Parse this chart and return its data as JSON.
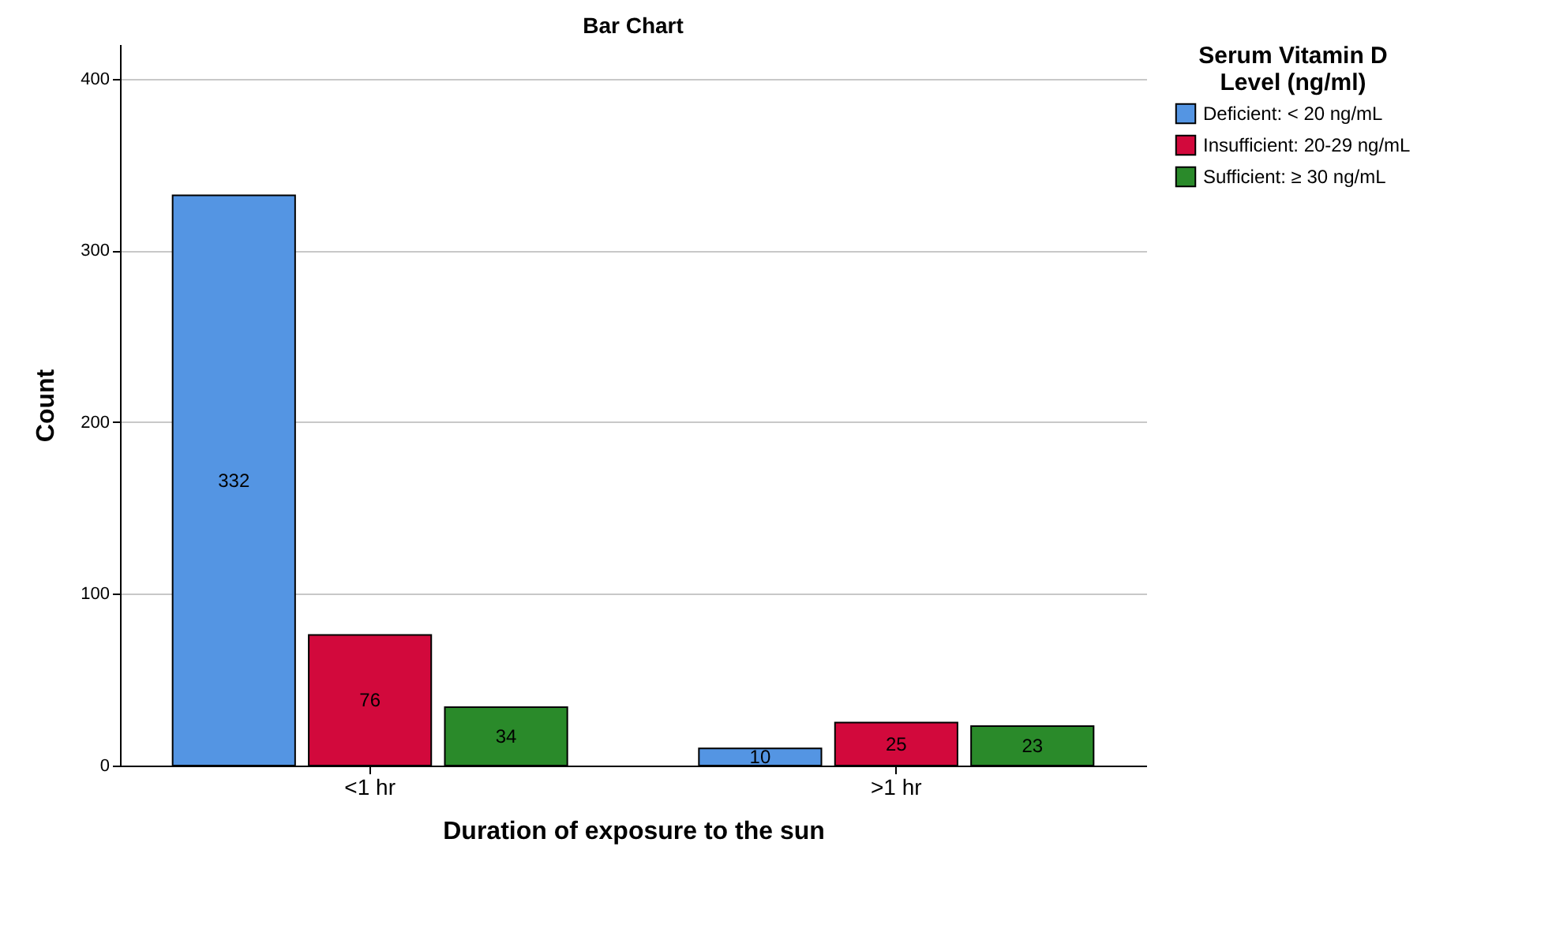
{
  "chart_data": {
    "type": "bar",
    "title": "Bar Chart",
    "xlabel": "Duration of exposure to the sun",
    "ylabel": "Count",
    "legend_title": "Serum Vitamin D Level (ng/ml)",
    "categories": [
      "<1 hr",
      ">1 hr"
    ],
    "series": [
      {
        "name": "Deficient: < 20 ng/mL",
        "color": "#5495e3",
        "values": [
          332,
          10
        ]
      },
      {
        "name": "Insufficient: 20-29 ng/mL",
        "color": "#d2093c",
        "values": [
          76,
          25
        ]
      },
      {
        "name": "Sufficient: ≥ 30 ng/mL",
        "color": "#2a8a2a",
        "values": [
          34,
          23
        ]
      }
    ],
    "ylim": [
      0,
      420
    ],
    "yticks": [
      0,
      100,
      200,
      300,
      400
    ],
    "grid": "y",
    "legend": "top right",
    "data_labels": true
  }
}
